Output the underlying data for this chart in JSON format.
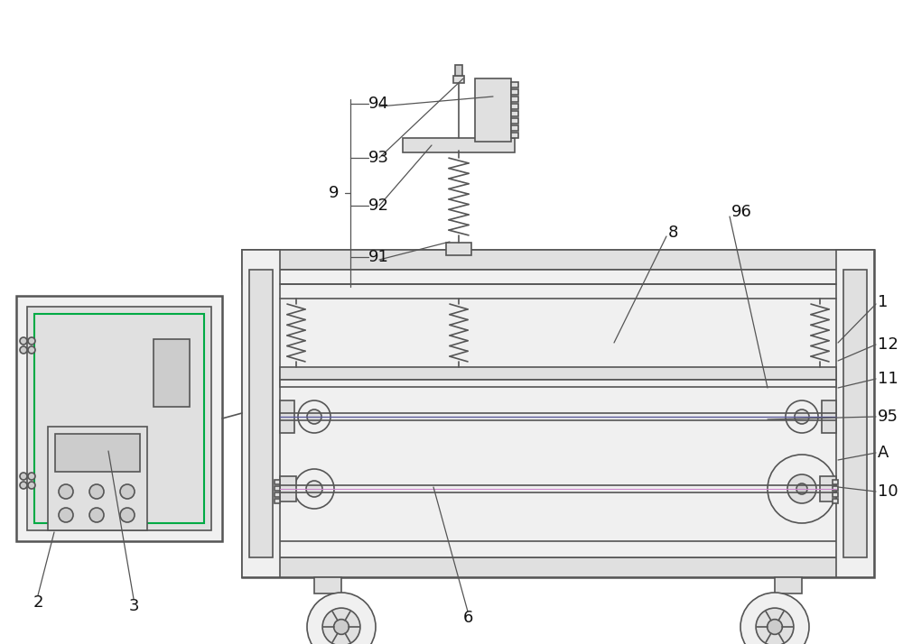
{
  "bg_color": "#ffffff",
  "lc": "#555555",
  "lw": 1.2,
  "tlw": 1.8,
  "fs": 13,
  "gray_light": "#f0f0f0",
  "gray_mid": "#e0e0e0",
  "gray_dark": "#cccccc",
  "green": "#00aa44"
}
